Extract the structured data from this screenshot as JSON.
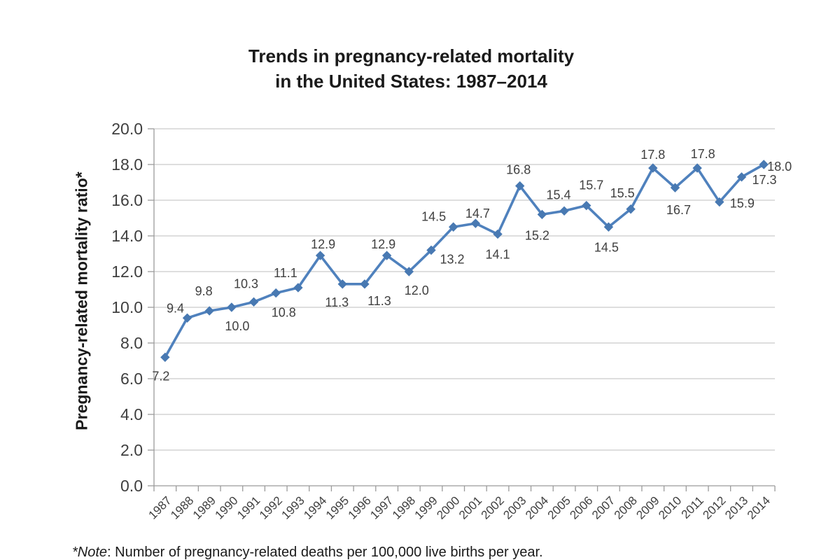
{
  "title": {
    "line1": "Trends in pregnancy-related mortality",
    "line2": "in the United States: 1987–2014"
  },
  "yaxis": {
    "title": "Pregnancy-related mortality ratio*"
  },
  "note": {
    "prefix": "*Note",
    "rest": ": Number of pregnancy-related deaths per 100,000 live births per year."
  },
  "chart_data": {
    "type": "line",
    "title": "Trends in pregnancy-related mortality in the United States: 1987–2014",
    "xlabel": "",
    "ylabel": "Pregnancy-related mortality ratio*",
    "categories": [
      "1987",
      "1988",
      "1989",
      "1990",
      "1991",
      "1992",
      "1993",
      "1994",
      "1995",
      "1996",
      "1997",
      "1998",
      "1999",
      "2000",
      "2001",
      "2002",
      "2003",
      "2004",
      "2005",
      "2006",
      "2007",
      "2008",
      "2009",
      "2010",
      "2011",
      "2012",
      "2013",
      "2014"
    ],
    "values": [
      7.2,
      9.4,
      9.8,
      10.0,
      10.3,
      10.8,
      11.1,
      12.9,
      11.3,
      11.3,
      12.9,
      12.0,
      13.2,
      14.5,
      14.7,
      14.1,
      16.8,
      15.2,
      15.4,
      15.7,
      14.5,
      15.5,
      17.8,
      16.7,
      17.8,
      15.9,
      17.3,
      18.0
    ],
    "data_labels": [
      "7.2",
      "9.4",
      "9.8",
      "10.0",
      "10.3",
      "10.8",
      "11.1",
      "12.9",
      "11.3",
      "11.3",
      "12.9",
      "12.0",
      "13.2",
      "14.5",
      "14.7",
      "14.1",
      "16.8",
      "15.2",
      "15.4",
      "15.7",
      "14.5",
      "15.5",
      "17.8",
      "16.7",
      "17.8",
      "15.9",
      "17.3",
      "18.0"
    ],
    "label_offsets": [
      [
        -6,
        33,
        "m"
      ],
      [
        -17,
        -8,
        "m"
      ],
      [
        -8,
        -22,
        "m"
      ],
      [
        8,
        33,
        "m"
      ],
      [
        -11,
        -20,
        "m"
      ],
      [
        11,
        34,
        "m"
      ],
      [
        -18,
        -15,
        "m"
      ],
      [
        4,
        -10,
        "m"
      ],
      [
        -8,
        32,
        "m"
      ],
      [
        21,
        30,
        "m"
      ],
      [
        -5,
        -10,
        "m"
      ],
      [
        11,
        33,
        "m"
      ],
      [
        30,
        19,
        "m"
      ],
      [
        -28,
        -9,
        "m"
      ],
      [
        3,
        -8,
        "m"
      ],
      [
        0,
        35,
        "m"
      ],
      [
        -2,
        -17,
        "m"
      ],
      [
        -7,
        36,
        "m"
      ],
      [
        -8,
        -17,
        "m"
      ],
      [
        7,
        -23,
        "m"
      ],
      [
        -3,
        35,
        "m"
      ],
      [
        -12,
        -17,
        "m"
      ],
      [
        0,
        -13,
        "m"
      ],
      [
        5,
        38,
        "m"
      ],
      [
        8,
        -14,
        "m"
      ],
      [
        15,
        8,
        "s"
      ],
      [
        15,
        10,
        "s"
      ],
      [
        5,
        9,
        "s"
      ]
    ],
    "ylim": [
      0,
      20
    ],
    "ytick_step": 2,
    "ytick_labels": [
      "0.0",
      "2.0",
      "4.0",
      "6.0",
      "8.0",
      "10.0",
      "12.0",
      "14.0",
      "16.0",
      "18.0",
      "20.0"
    ],
    "grid": "horizontal",
    "legend": "none",
    "colors": {
      "line": "#4F81BD",
      "marker": "#4879B2",
      "gridline": "#C9C9C9",
      "axis": "#9B9B9B",
      "tick_label": "#3F3F3F",
      "data_label": "#404040"
    }
  }
}
